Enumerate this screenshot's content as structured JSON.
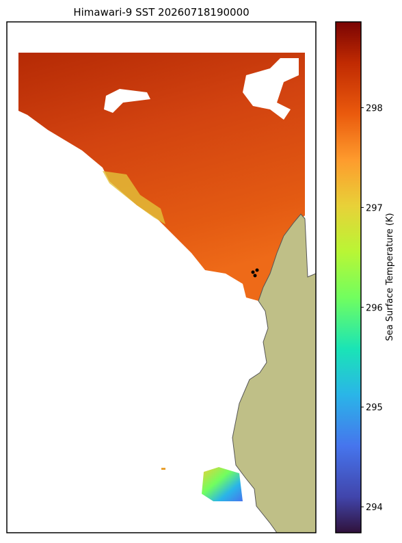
{
  "chart_data": {
    "type": "map",
    "title": "Himawari-9 SST 20260718190000",
    "colorbar": {
      "label": "Sea Surface Temperature (K)",
      "lim": [
        293.74,
        298.86
      ],
      "ticks": [
        294,
        295,
        296,
        297,
        298
      ]
    }
  }
}
